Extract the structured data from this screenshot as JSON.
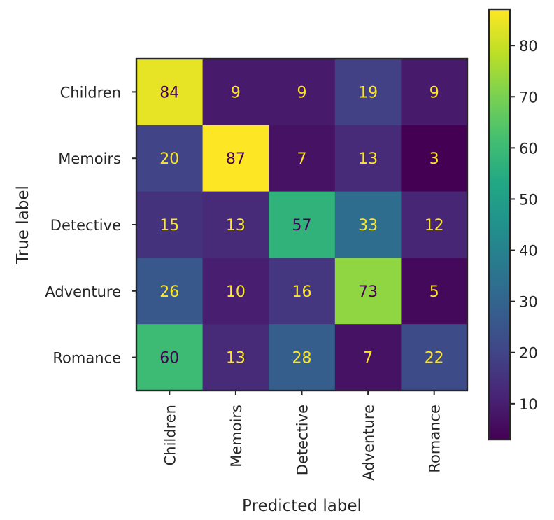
{
  "chart_data": {
    "type": "heatmap",
    "title": "",
    "xlabel": "Predicted label",
    "ylabel": "True label",
    "x_categories": [
      "Children",
      "Memoirs",
      "Detective",
      "Adventure",
      "Romance"
    ],
    "y_categories": [
      "Children",
      "Memoirs",
      "Detective",
      "Adventure",
      "Romance"
    ],
    "values": [
      [
        84,
        9,
        9,
        19,
        9
      ],
      [
        20,
        87,
        7,
        13,
        3
      ],
      [
        15,
        13,
        57,
        33,
        12
      ],
      [
        26,
        10,
        16,
        73,
        5
      ],
      [
        60,
        13,
        28,
        7,
        22
      ]
    ],
    "colormap": "viridis",
    "colorbar": {
      "range": [
        3,
        87
      ],
      "ticks": [
        10,
        20,
        30,
        40,
        50,
        60,
        70,
        80
      ],
      "placement": "right"
    },
    "grid": false
  }
}
